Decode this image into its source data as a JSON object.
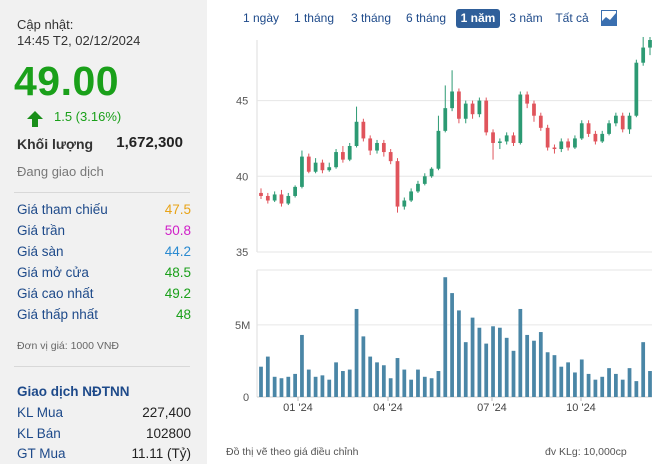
{
  "quote": {
    "update_label": "Cập nhật:",
    "update_time": "14:45 T2, 02/12/2024",
    "price": "49.00",
    "change": "1.5 (3.16%)",
    "volume_label": "Khối lượng",
    "volume": "1,672,300",
    "status": "Đang giao dịch"
  },
  "stats": [
    {
      "label": "Giá tham chiếu",
      "value": "47.5",
      "color": "#e8a317"
    },
    {
      "label": "Giá trần",
      "value": "50.8",
      "color": "#d020c8"
    },
    {
      "label": "Giá sàn",
      "value": "44.2",
      "color": "#2a8ad0"
    },
    {
      "label": "Giá mở cửa",
      "value": "48.5",
      "color": "#1aa01a"
    },
    {
      "label": "Giá cao nhất",
      "value": "49.2",
      "color": "#1aa01a"
    },
    {
      "label": "Giá thấp nhất",
      "value": "48",
      "color": "#1aa01a"
    }
  ],
  "unit_note": "Đơn vị giá: 1000 VNĐ",
  "foreign": {
    "title": "Giao dịch NĐTNN",
    "rows": [
      {
        "label": "KL Mua",
        "value": "227,400"
      },
      {
        "label": "KL Bán",
        "value": "102800"
      },
      {
        "label": "GT Mua",
        "value": "11.11 (Tỷ)"
      }
    ]
  },
  "tabs": [
    "1 ngày",
    "1 tháng",
    "3 tháng",
    "6 tháng",
    "1 năm",
    "3 năm",
    "Tất cả"
  ],
  "active_tab": "1 năm",
  "footer": {
    "left": "Đồ thị vẽ theo giá điều chỉnh",
    "right": "đv KLg: 10,000cp"
  },
  "chart_data": {
    "type": "candlestick",
    "price_ticks": [
      "35",
      "40",
      "45"
    ],
    "price_range": [
      35,
      49
    ],
    "volume_ticks": [
      "0",
      "5M"
    ],
    "volume_unit_max": 8.8,
    "x_labels": [
      "01 '24",
      "04 '24",
      "07 '24",
      "10 '24"
    ],
    "colors": {
      "up": "#2c9a73",
      "down": "#e0545c",
      "volume": "#4a86a6",
      "grid": "#e6e6e6"
    },
    "candles": [
      [
        38.9,
        38.7,
        39.2,
        38.5
      ],
      [
        38.7,
        38.4,
        38.9,
        38.2
      ],
      [
        38.4,
        38.8,
        39.0,
        38.3
      ],
      [
        38.8,
        38.2,
        39.1,
        38.0
      ],
      [
        38.2,
        38.7,
        38.9,
        38.1
      ],
      [
        38.7,
        39.3,
        39.4,
        38.6
      ],
      [
        39.3,
        41.3,
        41.7,
        39.2
      ],
      [
        41.3,
        40.3,
        41.5,
        40.2
      ],
      [
        40.3,
        40.9,
        41.2,
        40.2
      ],
      [
        40.9,
        40.4,
        41.1,
        40.2
      ],
      [
        40.4,
        40.6,
        40.9,
        40.3
      ],
      [
        40.6,
        41.6,
        41.8,
        40.5
      ],
      [
        41.6,
        41.1,
        42.0,
        40.9
      ],
      [
        41.1,
        42.0,
        42.2,
        41.0
      ],
      [
        42.0,
        43.6,
        44.6,
        41.9
      ],
      [
        43.6,
        42.5,
        43.8,
        42.3
      ],
      [
        42.5,
        41.7,
        42.7,
        41.4
      ],
      [
        41.7,
        42.2,
        42.4,
        41.5
      ],
      [
        42.2,
        41.6,
        42.4,
        41.3
      ],
      [
        41.6,
        41.0,
        41.8,
        40.8
      ],
      [
        41.0,
        38.0,
        41.2,
        37.6
      ],
      [
        38.0,
        38.4,
        38.6,
        37.8
      ],
      [
        38.4,
        39.0,
        39.2,
        38.3
      ],
      [
        39.0,
        39.5,
        39.7,
        38.9
      ],
      [
        39.5,
        40.0,
        40.2,
        39.4
      ],
      [
        40.0,
        40.5,
        40.6,
        39.9
      ],
      [
        40.5,
        43.0,
        44.0,
        40.4
      ],
      [
        43.0,
        44.5,
        46.0,
        42.9
      ],
      [
        44.5,
        45.6,
        47.0,
        44.3
      ],
      [
        45.6,
        43.8,
        45.8,
        43.5
      ],
      [
        43.8,
        44.8,
        45.0,
        43.5
      ],
      [
        44.8,
        44.1,
        45.0,
        43.8
      ],
      [
        44.1,
        45.0,
        45.2,
        43.9
      ],
      [
        45.0,
        42.9,
        45.2,
        42.7
      ],
      [
        42.9,
        42.2,
        43.1,
        41.1
      ],
      [
        42.2,
        42.3,
        42.5,
        41.8
      ],
      [
        42.3,
        42.7,
        42.9,
        42.1
      ],
      [
        42.7,
        42.2,
        42.9,
        42.0
      ],
      [
        42.2,
        45.4,
        45.6,
        42.1
      ],
      [
        45.4,
        44.8,
        45.6,
        44.5
      ],
      [
        44.8,
        44.0,
        45.0,
        43.6
      ],
      [
        44.0,
        43.2,
        44.2,
        43.0
      ],
      [
        43.2,
        41.9,
        43.4,
        41.7
      ],
      [
        41.9,
        41.8,
        42.1,
        41.5
      ],
      [
        41.8,
        42.3,
        42.5,
        41.6
      ],
      [
        42.3,
        41.9,
        42.5,
        41.7
      ],
      [
        41.9,
        42.5,
        42.7,
        41.8
      ],
      [
        42.5,
        43.5,
        43.7,
        42.4
      ],
      [
        43.5,
        42.8,
        43.7,
        42.6
      ],
      [
        42.8,
        42.3,
        43.0,
        42.1
      ],
      [
        42.3,
        42.8,
        43.0,
        42.2
      ],
      [
        42.8,
        43.5,
        43.7,
        42.7
      ],
      [
        43.5,
        44.0,
        44.2,
        43.3
      ],
      [
        44.0,
        43.1,
        44.2,
        42.9
      ],
      [
        43.1,
        44.0,
        44.2,
        42.8
      ],
      [
        44.0,
        47.5,
        47.7,
        43.9
      ],
      [
        47.5,
        48.5,
        49.2,
        47.3
      ],
      [
        48.5,
        49.0,
        49.2,
        48.0
      ]
    ],
    "volumes": [
      2.1,
      2.8,
      1.4,
      1.3,
      1.4,
      1.6,
      4.3,
      1.9,
      1.4,
      1.5,
      1.2,
      2.4,
      1.8,
      1.9,
      6.1,
      4.2,
      2.8,
      2.4,
      2.2,
      1.3,
      2.7,
      1.9,
      1.2,
      1.9,
      1.4,
      1.3,
      1.8,
      8.3,
      7.2,
      6.0,
      3.8,
      5.5,
      4.8,
      3.7,
      4.9,
      4.8,
      4.1,
      3.2,
      6.1,
      4.3,
      3.9,
      4.5,
      3.1,
      2.9,
      2.1,
      2.4,
      1.7,
      2.6,
      1.6,
      1.2,
      1.4,
      2.0,
      1.6,
      1.2,
      2.0,
      1.1,
      3.8,
      1.8
    ]
  }
}
